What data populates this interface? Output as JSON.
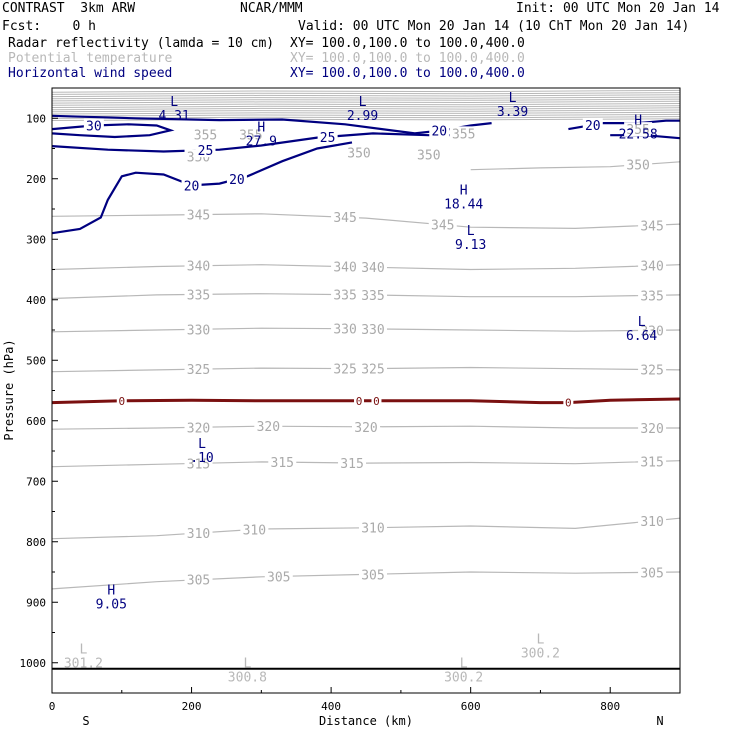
{
  "header": {
    "title_left": "CONTRAST  3km ARW",
    "title_center": "NCAR/MMM",
    "init": "Init: 00 UTC Mon 20 Jan 14",
    "fcst": "Fcst:    0 h",
    "valid": "Valid: 00 UTC Mon 20 Jan 14 (10 ChT Mon 20 Jan 14)",
    "fields": [
      {
        "name": "Radar reflectivity (lamda = 10 cm)",
        "xy": "XY= 100.0,100.0 to 100.0,400.0",
        "color": "#000000"
      },
      {
        "name": "Potential temperature",
        "xy": "XY= 100.0,100.0 to 100.0,400.0",
        "color": "#b8b8b8"
      },
      {
        "name": "Horizontal wind speed",
        "xy": "XY= 100.0,100.0 to 100.0,400.0",
        "color": "#000080"
      }
    ]
  },
  "chart_data": {
    "type": "line",
    "xlabel": "Distance (km)",
    "ylabel": "Pressure (hPa)",
    "xlim": [
      0,
      900
    ],
    "ylim": [
      1050,
      50
    ],
    "xticks": [
      0,
      200,
      400,
      600,
      800
    ],
    "yticks": [
      100,
      200,
      300,
      400,
      500,
      600,
      700,
      800,
      900,
      1000
    ],
    "x_end_labels": {
      "left": "S",
      "right": "N"
    },
    "theta_contours": [
      {
        "label": "345",
        "x": [
          0,
          150,
          300,
          450,
          600,
          750,
          900
        ],
        "y": [
          262,
          260,
          258,
          265,
          280,
          282,
          275
        ],
        "label_x": [
          210,
          420,
          560,
          860
        ]
      },
      {
        "label": "340",
        "x": [
          0,
          150,
          300,
          450,
          600,
          750,
          900
        ],
        "y": [
          350,
          345,
          342,
          346,
          350,
          348,
          342
        ],
        "label_x": [
          210,
          420,
          460,
          860
        ]
      },
      {
        "label": "335",
        "x": [
          0,
          150,
          300,
          450,
          600,
          750,
          900
        ],
        "y": [
          398,
          392,
          390,
          392,
          395,
          395,
          392
        ],
        "label_x": [
          210,
          420,
          460,
          860
        ]
      },
      {
        "label": "330",
        "x": [
          0,
          150,
          300,
          450,
          600,
          750,
          900
        ],
        "y": [
          453,
          450,
          447,
          448,
          450,
          452,
          450
        ],
        "label_x": [
          210,
          420,
          460,
          860
        ]
      },
      {
        "label": "325",
        "x": [
          0,
          150,
          300,
          450,
          600,
          750,
          900
        ],
        "y": [
          519,
          516,
          513,
          514,
          512,
          514,
          516
        ],
        "label_x": [
          210,
          420,
          460,
          860
        ]
      },
      {
        "label": "320",
        "x": [
          0,
          150,
          300,
          450,
          600,
          750,
          900
        ],
        "y": [
          614,
          612,
          609,
          610,
          609,
          612,
          612
        ],
        "label_x": [
          210,
          310,
          450,
          860
        ]
      },
      {
        "label": "315",
        "x": [
          0,
          150,
          300,
          450,
          600,
          750,
          900
        ],
        "y": [
          676,
          672,
          668,
          670,
          669,
          671,
          666
        ],
        "label_x": [
          210,
          330,
          430,
          860
        ]
      },
      {
        "label": "310",
        "x": [
          0,
          150,
          300,
          450,
          600,
          750,
          900
        ],
        "y": [
          795,
          790,
          779,
          777,
          774,
          778,
          761
        ],
        "label_x": [
          210,
          290,
          460,
          860
        ]
      },
      {
        "label": "305",
        "x": [
          0,
          150,
          300,
          450,
          600,
          750,
          900
        ],
        "y": [
          878,
          866,
          858,
          854,
          850,
          852,
          850
        ],
        "label_x": [
          210,
          325,
          460,
          860
        ]
      },
      {
        "label": "350",
        "x": [
          600,
          700,
          800,
          900
        ],
        "y": [
          185,
          182,
          180,
          172
        ],
        "label_x": [
          840
        ]
      }
    ],
    "theta_upper_labels": [
      {
        "text": "355",
        "x": 220,
        "p": 127
      },
      {
        "text": "355",
        "x": 285,
        "p": 127
      },
      {
        "text": "355",
        "x": 590,
        "p": 125
      },
      {
        "text": "355",
        "x": 840,
        "p": 118
      },
      {
        "text": "350",
        "x": 440,
        "p": 157
      },
      {
        "text": "350",
        "x": 540,
        "p": 160
      },
      {
        "text": "350",
        "x": 210,
        "p": 163
      }
    ],
    "zero_contour": {
      "label": "0",
      "x": [
        0,
        100,
        200,
        300,
        400,
        450,
        500,
        600,
        700,
        740,
        800,
        900
      ],
      "y": [
        570,
        567,
        566,
        567,
        567,
        567,
        567,
        567,
        570,
        570,
        566,
        564
      ],
      "label_x": [
        100,
        440,
        465,
        740
      ]
    },
    "wind_contours": [
      {
        "label": "30",
        "x": [
          0,
          60,
          110,
          150,
          170,
          140,
          90,
          40,
          0
        ],
        "y": [
          118,
          112,
          110,
          112,
          120,
          128,
          131,
          128,
          125
        ],
        "label_x": [
          60
        ]
      },
      {
        "label": "25",
        "x": [
          0,
          80,
          160,
          240,
          300,
          380,
          460,
          540,
          580
        ],
        "y": [
          146,
          152,
          155,
          152,
          145,
          132,
          125,
          128,
          128
        ],
        "label_x": [
          220,
          395
        ]
      },
      {
        "label": "20",
        "x": [
          0,
          120,
          240,
          330,
          420,
          520,
          560,
          600,
          630
        ],
        "y": [
          96,
          100,
          103,
          102,
          110,
          125,
          120,
          112,
          108
        ],
        "label_x": [
          555
        ]
      },
      {
        "label": "20",
        "x": [
          0,
          40,
          70,
          80,
          100,
          120,
          160,
          200,
          240,
          280,
          330,
          380,
          430
        ],
        "y": [
          290,
          283,
          264,
          235,
          196,
          190,
          193,
          211,
          208,
          196,
          171,
          150,
          140
        ],
        "label_x": [
          200,
          265
        ]
      },
      {
        "label": "20",
        "x": [
          740,
          790,
          840,
          880,
          900
        ],
        "y": [
          118,
          108,
          108,
          104,
          104
        ],
        "label_x": [
          775
        ]
      },
      {
        "label": "",
        "x": [
          800,
          850,
          900
        ],
        "y": [
          128,
          128,
          133
        ],
        "label_x": []
      }
    ],
    "extrema": [
      {
        "type": "L",
        "value": "4.31",
        "x": 175,
        "p": 80,
        "color": "#000080"
      },
      {
        "type": "L",
        "value": "2.99",
        "x": 445,
        "p": 80,
        "color": "#000080"
      },
      {
        "type": "L",
        "value": "3.39",
        "x": 660,
        "p": 73,
        "color": "#000080"
      },
      {
        "type": "H",
        "value": "27.9",
        "x": 300,
        "p": 122,
        "color": "#000080"
      },
      {
        "type": "H",
        "value": "22.58",
        "x": 840,
        "p": 110,
        "color": "#000080"
      },
      {
        "type": "H",
        "value": "18.44",
        "x": 590,
        "p": 226,
        "color": "#000080"
      },
      {
        "type": "L",
        "value": "9.13",
        "x": 600,
        "p": 293,
        "color": "#000080"
      },
      {
        "type": "L",
        "value": "6.64",
        "x": 845,
        "p": 443,
        "color": "#000080"
      },
      {
        "type": "L",
        "value": ".10",
        "x": 215,
        "p": 645,
        "color": "#000080"
      },
      {
        "type": "H",
        "value": "9.05",
        "x": 85,
        "p": 887,
        "color": "#000080"
      },
      {
        "type": "L",
        "value": "301.2",
        "x": 45,
        "p": 985,
        "color": "#b8b8b8"
      },
      {
        "type": "L",
        "value": "300.8",
        "x": 280,
        "p": 1008,
        "color": "#b8b8b8"
      },
      {
        "type": "L",
        "value": "300.2",
        "x": 590,
        "p": 1008,
        "color": "#b8b8b8"
      },
      {
        "type": "L",
        "value": "300.2",
        "x": 700,
        "p": 968,
        "color": "#b8b8b8"
      }
    ],
    "surface_p": 1010,
    "colors": {
      "theta": "#b8b8b8",
      "wind": "#000080",
      "reflectivity": "#000000",
      "zero": "#7a1010",
      "axis": "#000000"
    }
  }
}
